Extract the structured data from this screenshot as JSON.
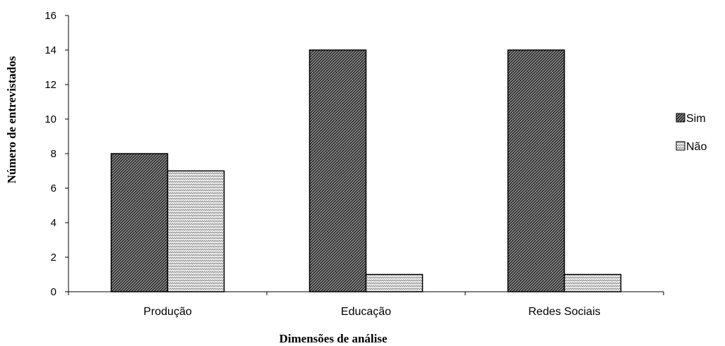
{
  "chart_data": {
    "type": "bar",
    "title": "",
    "xlabel": "Dimensões de análise",
    "ylabel": "Número de entrevistados",
    "categories": [
      "Produção",
      "Educação",
      "Redes Sociais"
    ],
    "series": [
      {
        "name": "Sim",
        "values": [
          8,
          14,
          14
        ],
        "pattern": "dense-diagonal"
      },
      {
        "name": "Não",
        "values": [
          7,
          1,
          1
        ],
        "pattern": "light-zigzag"
      }
    ],
    "ylim": [
      0,
      16
    ],
    "yticks": [
      "0",
      "2",
      "4",
      "6",
      "8",
      "10",
      "12",
      "14",
      "16"
    ],
    "grid": false,
    "legend_position": "right",
    "colors": {
      "bar_stroke": "#000000",
      "sim_fill": "#5a5a5a",
      "nao_fill": "#d8d8d8",
      "axis": "#000000"
    }
  }
}
